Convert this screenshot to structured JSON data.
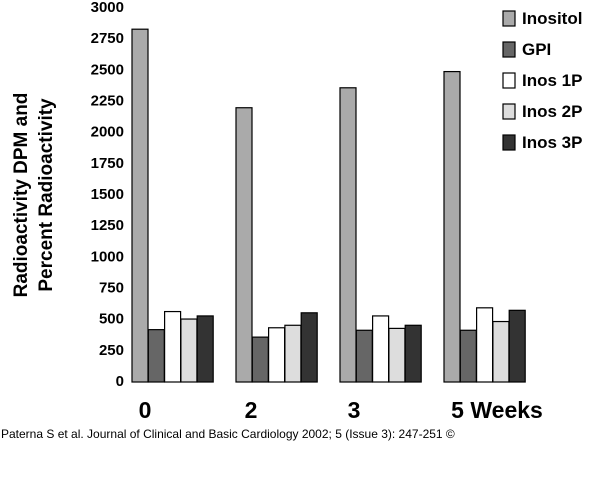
{
  "chart_data": {
    "type": "bar",
    "title": "",
    "xlabel": "",
    "ylabel_lines": [
      "Radioactivity DPM and",
      "Percent Radioactivity"
    ],
    "categories": [
      "0",
      "2",
      "3",
      "5 Weeks"
    ],
    "ylim": [
      0,
      3000
    ],
    "yticks": [
      0,
      250,
      500,
      750,
      1000,
      1250,
      1500,
      1750,
      2000,
      2250,
      2500,
      2750,
      3000
    ],
    "legend_position": "top-right",
    "series": [
      {
        "name": "Inositol",
        "color": "#aaaaaa",
        "values": [
          2830,
          2200,
          2360,
          2490
        ]
      },
      {
        "name": "GPI",
        "color": "#666666",
        "values": [
          420,
          360,
          415,
          415
        ]
      },
      {
        "name": "Inos 1P",
        "color": "#ffffff",
        "values": [
          565,
          435,
          530,
          595
        ]
      },
      {
        "name": "Inos 2P",
        "color": "#dddddd",
        "values": [
          505,
          455,
          430,
          485
        ]
      },
      {
        "name": "Inos 3P",
        "color": "#333333",
        "values": [
          530,
          555,
          455,
          575
        ]
      }
    ]
  },
  "citation": "Paterna S et al. Journal of Clinical and Basic Cardiology 2002; 5 (Issue 3): 247-251 ©"
}
